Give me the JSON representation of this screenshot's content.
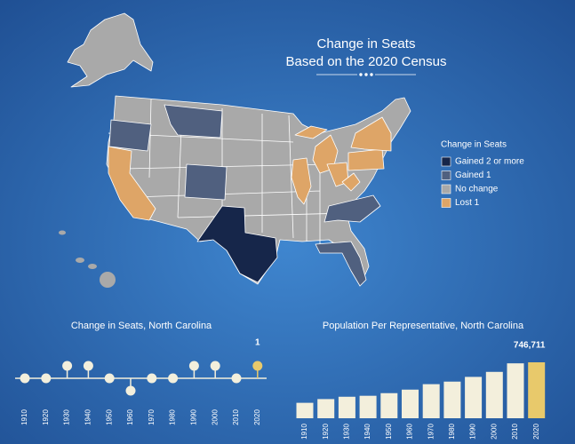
{
  "header": {
    "title": "Change in Seats",
    "subtitle": "Based on the 2020 Census"
  },
  "map": {
    "legend_title": "Change in Seats",
    "legend": [
      {
        "label": "Gained 2 or more",
        "color": "#16264a"
      },
      {
        "label": "Gained 1",
        "color": "#50607f"
      },
      {
        "label": "No change",
        "color": "#a9a9a9"
      },
      {
        "label": "Lost 1",
        "color": "#dea567"
      }
    ]
  },
  "chart_data": [
    {
      "type": "lollipop",
      "title": "Change in Seats, North Carolina",
      "categories": [
        "1910",
        "1920",
        "1930",
        "1940",
        "1950",
        "1960",
        "1970",
        "1980",
        "1990",
        "2000",
        "2010",
        "2020"
      ],
      "values": [
        0,
        0,
        1,
        1,
        0,
        -1,
        0,
        0,
        1,
        1,
        0,
        1
      ],
      "color": "#f3efdc",
      "highlight_color": "#e8c96b",
      "data_labels": "last"
    },
    {
      "type": "bar",
      "title": "Population Per Representative, North Carolina",
      "categories": [
        "1910",
        "1920",
        "1930",
        "1940",
        "1950",
        "1960",
        "1970",
        "1980",
        "1990",
        "2000",
        "2010",
        "2020"
      ],
      "values": [
        206000,
        256000,
        287000,
        300000,
        335000,
        382000,
        455000,
        489000,
        552000,
        619000,
        733000,
        746711
      ],
      "value_labels": [
        null,
        null,
        null,
        null,
        null,
        null,
        null,
        null,
        null,
        null,
        null,
        "746,711"
      ],
      "color": "#f3efdc",
      "highlight_color": "#e8c96b"
    }
  ]
}
